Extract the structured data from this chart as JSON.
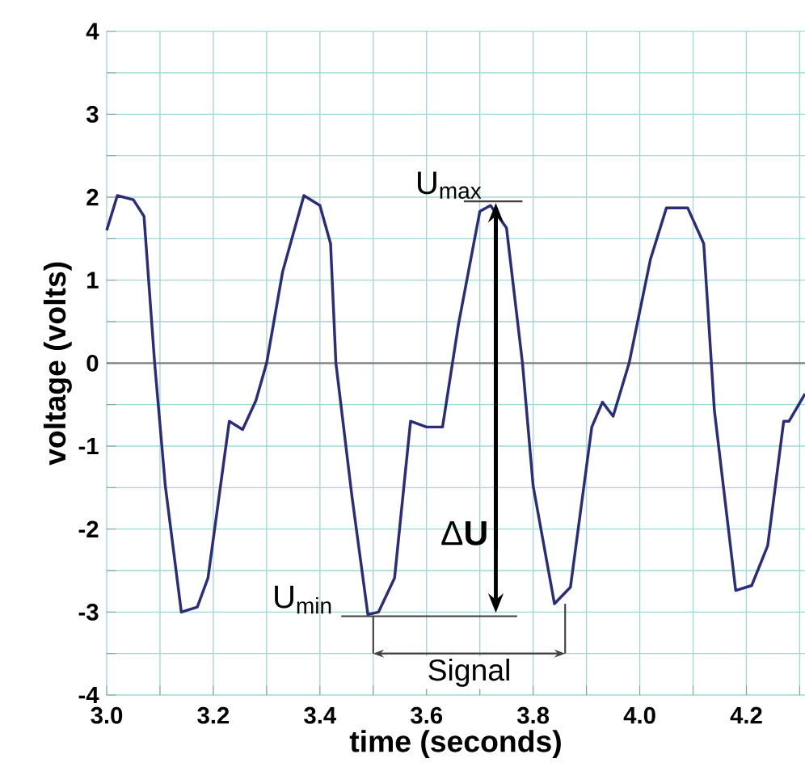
{
  "chart_data": {
    "type": "line",
    "xlabel": "time (seconds)",
    "ylabel": "voltage (volts)",
    "series": [
      {
        "color": "#2b2d7a",
        "x": [
          3.0,
          3.02,
          3.05,
          3.07,
          3.09,
          3.11,
          3.14,
          3.17,
          3.19,
          3.23,
          3.255,
          3.28,
          3.3,
          3.33,
          3.37,
          3.4,
          3.42,
          3.43,
          3.46,
          3.49,
          3.51,
          3.54,
          3.57,
          3.6,
          3.63,
          3.66,
          3.7,
          3.72,
          3.75,
          3.78,
          3.8,
          3.84,
          3.87,
          3.91,
          3.93,
          3.95,
          3.98,
          4.02,
          4.05,
          4.09,
          4.12,
          4.14,
          4.18,
          4.21,
          4.24,
          4.27,
          4.28,
          4.31
        ],
        "values": [
          1.6,
          2.02,
          1.97,
          1.77,
          0.0,
          -1.48,
          -3.0,
          -2.94,
          -2.59,
          -0.7,
          -0.8,
          -0.45,
          0.0,
          1.1,
          2.02,
          1.9,
          1.44,
          0.0,
          -1.6,
          -3.03,
          -3.0,
          -2.59,
          -0.7,
          -0.77,
          -0.77,
          0.47,
          1.83,
          1.9,
          1.63,
          0.0,
          -1.48,
          -2.9,
          -2.7,
          -0.77,
          -0.47,
          -0.64,
          0.0,
          1.25,
          1.87,
          1.87,
          1.44,
          -0.57,
          -2.74,
          -2.68,
          -2.2,
          -0.7,
          -0.7,
          -0.37
        ]
      }
    ],
    "xlim": [
      3.0,
      4.31
    ],
    "ylim": [
      -4,
      4
    ],
    "xticks": [
      {
        "value": 3.0,
        "label": "3.0"
      },
      {
        "value": 3.1,
        "label": null
      },
      {
        "value": 3.2,
        "label": "3.2"
      },
      {
        "value": 3.3,
        "label": null
      },
      {
        "value": 3.4,
        "label": "3.4"
      },
      {
        "value": 3.5,
        "label": null
      },
      {
        "value": 3.6,
        "label": "3.6"
      },
      {
        "value": 3.7,
        "label": null
      },
      {
        "value": 3.8,
        "label": "3.8"
      },
      {
        "value": 3.9,
        "label": null
      },
      {
        "value": 4.0,
        "label": "4.0"
      },
      {
        "value": 4.1,
        "label": null
      },
      {
        "value": 4.2,
        "label": "4.2"
      },
      {
        "value": 4.3,
        "label": null
      }
    ],
    "yticks": [
      -4,
      {
        "value": -3.5,
        "label": null
      },
      -3,
      {
        "value": -2.5,
        "label": null
      },
      -2,
      {
        "value": -1.5,
        "label": null
      },
      -1,
      {
        "value": -0.5,
        "label": null
      },
      0,
      {
        "value": 0.5,
        "label": null
      },
      1,
      {
        "value": 1.5,
        "label": null
      },
      2,
      {
        "value": 2.5,
        "label": null
      },
      3,
      {
        "value": 3.5,
        "label": null
      },
      4
    ],
    "grid": true,
    "line_style": "solid",
    "marker": "none",
    "ref_lines": [
      {
        "axis": "y",
        "value": 0,
        "color": "#808080"
      }
    ],
    "annotations": [
      {
        "text": "U$_{max}$",
        "x": 3.72,
        "y": 1.95
      },
      {
        "text": "U$_{min}$",
        "x": 3.5,
        "y": -3.05
      },
      "Δ**U**",
      "Signal"
    ]
  }
}
